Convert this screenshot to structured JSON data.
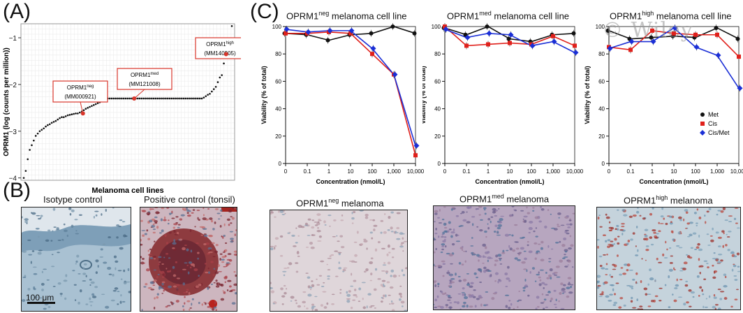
{
  "watermark": "© Wiley",
  "panelA": {
    "letter": "(A)",
    "ylabel": "OPRM1 (log (counts per million))",
    "xlabel": "Melanoma cell lines",
    "yticks": [
      "−1",
      "−2",
      "−3",
      "−4"
    ],
    "callouts": [
      {
        "name": "neg",
        "line1": "OPRM1",
        "sup": "neg",
        "line2": "(MM000921)"
      },
      {
        "name": "med",
        "line1": "OPRM1",
        "sup": "med",
        "line2": "(MM121008)"
      },
      {
        "name": "high",
        "line1": "OPRM1",
        "sup": "high",
        "line2": "(MM140905)"
      }
    ]
  },
  "panelB": {
    "letter": "(B)",
    "captions": [
      {
        "text": "Isotype control"
      },
      {
        "text": "Positive control (tonsil)"
      },
      {
        "pre": "OPRM1",
        "sup": "neg",
        "post": " melanoma"
      },
      {
        "pre": "OPRM1",
        "sup": "med",
        "post": " melanoma"
      },
      {
        "pre": "OPRM1",
        "sup": "high",
        "post": " melanoma"
      }
    ],
    "scalebar": "100 μm"
  },
  "panelC": {
    "letter": "(C)",
    "xlabel": "Concentration (nmol/L)",
    "ylabel": "Viability (% of total)",
    "legend": [
      "Met",
      "Cis",
      "Cis/Met"
    ]
  },
  "colors": {
    "met": "#111111",
    "cis": "#e0201b",
    "cismet": "#1b2fd6",
    "stain_blue": "#8fb2c9",
    "stain_red": "#a8362f",
    "callout": "#d9362b"
  },
  "chart_data": [
    {
      "type": "scatter",
      "title": "",
      "xlabel": "Melanoma cell lines",
      "ylabel": "OPRM1 (log (counts per million))",
      "ylim": [
        -4.05,
        -0.7
      ],
      "series": [
        {
          "name": "",
          "values": [
            -4.0,
            -3.85,
            -3.6,
            -3.4,
            -3.3,
            -3.2,
            -3.1,
            -3.05,
            -3.0,
            -2.97,
            -2.94,
            -2.9,
            -2.87,
            -2.85,
            -2.82,
            -2.8,
            -2.78,
            -2.75,
            -2.72,
            -2.7,
            -2.7,
            -2.68,
            -2.66,
            -2.65,
            -2.64,
            -2.63,
            -2.62,
            -2.62,
            -2.6,
            -2.58,
            -2.55,
            -2.52,
            -2.5,
            -2.48,
            -2.46,
            -2.44,
            -2.42,
            -2.4,
            -2.38,
            -2.36,
            -2.34,
            -2.32,
            -2.3,
            -2.3,
            -2.3,
            -2.3,
            -2.3,
            -2.3,
            -2.3,
            -2.3,
            -2.3,
            -2.3,
            -2.3,
            -2.3,
            -2.3,
            -2.3,
            -2.3,
            -2.3,
            -2.3,
            -2.3,
            -2.3,
            -2.3,
            -2.3,
            -2.3,
            -2.3,
            -2.3,
            -2.3,
            -2.3,
            -2.3,
            -2.3,
            -2.3,
            -2.3,
            -2.3,
            -2.3,
            -2.3,
            -2.3,
            -2.3,
            -2.3,
            -2.3,
            -2.3,
            -2.3,
            -2.3,
            -2.3,
            -2.3,
            -2.3,
            -2.3,
            -2.3,
            -2.3,
            -2.3,
            -2.3,
            -2.28,
            -2.25,
            -2.22,
            -2.2,
            -2.15,
            -2.1,
            -2.05,
            -1.95,
            -1.85,
            -1.8,
            -1.55,
            -1.4,
            -1.35,
            -1.3,
            -0.75
          ]
        }
      ],
      "highlighted": [
        {
          "label": "MM000921",
          "value": -2.62
        },
        {
          "label": "MM121008",
          "value": -2.3
        },
        {
          "label": "MM140905",
          "value": -1.35
        }
      ]
    },
    {
      "type": "line",
      "title": "OPRM1neg melanoma cell line",
      "xlabel": "Concentration (nmol/L)",
      "ylabel": "Viability (% of total)",
      "x_categories": [
        "0",
        "0.1",
        "1",
        "10",
        "100",
        "1,000",
        "10,000"
      ],
      "ylim": [
        0,
        100
      ],
      "series": [
        {
          "name": "Met",
          "values": [
            95,
            94,
            90,
            94,
            95,
            100,
            95
          ]
        },
        {
          "name": "Cis",
          "values": [
            95,
            95,
            96,
            95,
            80,
            65,
            6
          ]
        },
        {
          "name": "Cis/Met",
          "values": [
            98,
            96,
            97,
            97,
            84,
            65,
            13
          ]
        }
      ]
    },
    {
      "type": "line",
      "title": "OPRM1med melanoma cell line",
      "xlabel": "Concentration (nmol/L)",
      "ylabel": "Viability (% of total)",
      "x_categories": [
        "0",
        "0.1",
        "1",
        "10",
        "100",
        "1,000",
        "10,000"
      ],
      "ylim": [
        0,
        100
      ],
      "series": [
        {
          "name": "Met",
          "values": [
            99,
            94,
            100,
            91,
            89,
            94,
            95
          ]
        },
        {
          "name": "Cis",
          "values": [
            100,
            86,
            87,
            88,
            87,
            93,
            86
          ]
        },
        {
          "name": "Cis/Met",
          "values": [
            98,
            92,
            95,
            94,
            86,
            89,
            81
          ]
        }
      ]
    },
    {
      "type": "line",
      "title": "OPRM1high melanoma cell line",
      "xlabel": "Concentration (nmol/L)",
      "ylabel": "Viability (% of total)",
      "x_categories": [
        "0",
        "0.1",
        "1",
        "10",
        "100",
        "1,000",
        "10,000"
      ],
      "ylim": [
        0,
        100
      ],
      "series": [
        {
          "name": "Met",
          "values": [
            97,
            91,
            92,
            93,
            92,
            99,
            91
          ]
        },
        {
          "name": "Cis",
          "values": [
            85,
            83,
            97,
            95,
            94,
            94,
            78
          ]
        },
        {
          "name": "Cis/Met",
          "values": [
            84,
            89,
            89,
            99,
            85,
            79,
            55
          ]
        }
      ]
    }
  ]
}
